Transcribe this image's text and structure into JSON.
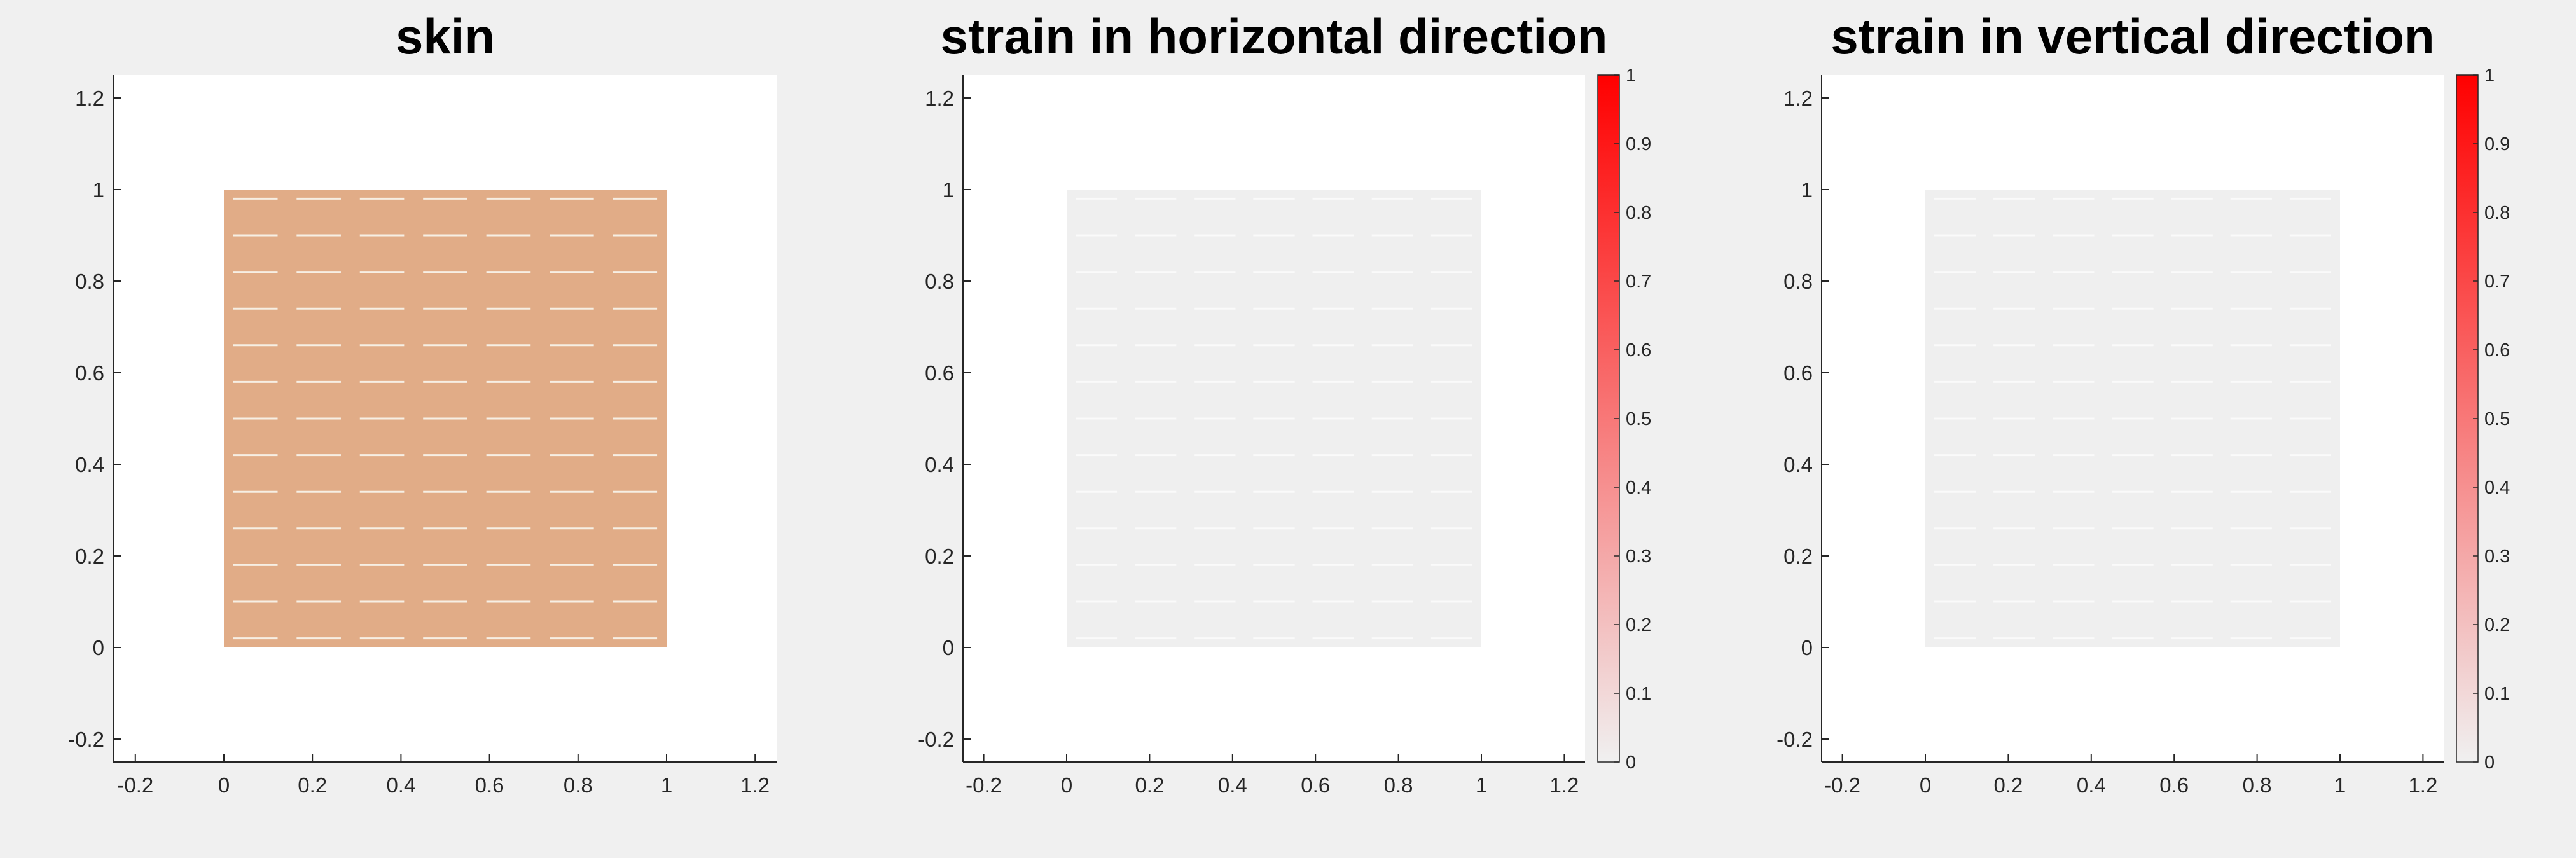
{
  "chart_data": [
    {
      "type": "heatmap",
      "title": "skin",
      "xlim": [
        -0.25,
        1.25
      ],
      "ylim": [
        -0.25,
        1.25
      ],
      "xticks": [
        -0.2,
        0,
        0.2,
        0.4,
        0.6,
        0.8,
        1,
        1.2
      ],
      "yticks": [
        -0.2,
        0,
        0.2,
        0.4,
        0.6,
        0.8,
        1,
        1.2
      ],
      "xtick_labels": [
        "-0.2",
        "0",
        "0.2",
        "0.4",
        "0.6",
        "0.8",
        "1",
        "1.2"
      ],
      "ytick_labels": [
        "-0.2",
        "0",
        "0.2",
        "0.4",
        "0.6",
        "0.8",
        "1",
        "1.2"
      ],
      "region": {
        "x": [
          0,
          1
        ],
        "y": [
          0,
          1
        ],
        "fill": "#e1ac87"
      },
      "slits": {
        "color": "#f6efe4",
        "columns": 7,
        "rows": 13,
        "row_y_start": 0.02,
        "row_y_step": 0.08,
        "length": 0.1
      },
      "colorbar": null
    },
    {
      "type": "heatmap",
      "title": "strain in horizontal direction",
      "xlim": [
        -0.25,
        1.25
      ],
      "ylim": [
        -0.25,
        1.25
      ],
      "xticks": [
        -0.2,
        0,
        0.2,
        0.4,
        0.6,
        0.8,
        1,
        1.2
      ],
      "yticks": [
        -0.2,
        0,
        0.2,
        0.4,
        0.6,
        0.8,
        1,
        1.2
      ],
      "xtick_labels": [
        "-0.2",
        "0",
        "0.2",
        "0.4",
        "0.6",
        "0.8",
        "1",
        "1.2"
      ],
      "ytick_labels": [
        "-0.2",
        "0",
        "0.2",
        "0.4",
        "0.6",
        "0.8",
        "1",
        "1.2"
      ],
      "region": {
        "x": [
          0,
          1
        ],
        "y": [
          0,
          1
        ],
        "fill": "#efefef",
        "value": 0
      },
      "slits": {
        "color": "#fafafa",
        "columns": 7,
        "rows": 13,
        "row_y_start": 0.02,
        "row_y_step": 0.08,
        "length": 0.1
      },
      "colorbar": {
        "range": [
          0,
          1
        ],
        "ticks": [
          0,
          0.1,
          0.2,
          0.3,
          0.4,
          0.5,
          0.6,
          0.7,
          0.8,
          0.9,
          1
        ],
        "tick_labels": [
          "0",
          "0.1",
          "0.2",
          "0.3",
          "0.4",
          "0.5",
          "0.6",
          "0.7",
          "0.8",
          "0.9",
          "1"
        ],
        "color_low": "#f0f0f0",
        "color_high": "#ff0000"
      }
    },
    {
      "type": "heatmap",
      "title": "strain in vertical direction",
      "xlim": [
        -0.25,
        1.25
      ],
      "ylim": [
        -0.25,
        1.25
      ],
      "xticks": [
        -0.2,
        0,
        0.2,
        0.4,
        0.6,
        0.8,
        1,
        1.2
      ],
      "yticks": [
        -0.2,
        0,
        0.2,
        0.4,
        0.6,
        0.8,
        1,
        1.2
      ],
      "xtick_labels": [
        "-0.2",
        "0",
        "0.2",
        "0.4",
        "0.6",
        "0.8",
        "1",
        "1.2"
      ],
      "ytick_labels": [
        "-0.2",
        "0",
        "0.2",
        "0.4",
        "0.6",
        "0.8",
        "1",
        "1.2"
      ],
      "region": {
        "x": [
          0,
          1
        ],
        "y": [
          0,
          1
        ],
        "fill": "#efefef",
        "value": 0
      },
      "slits": {
        "color": "#fafafa",
        "columns": 7,
        "rows": 13,
        "row_y_start": 0.02,
        "row_y_step": 0.08,
        "length": 0.1
      },
      "colorbar": {
        "range": [
          0,
          1
        ],
        "ticks": [
          0,
          0.1,
          0.2,
          0.3,
          0.4,
          0.5,
          0.6,
          0.7,
          0.8,
          0.9,
          1
        ],
        "tick_labels": [
          "0",
          "0.1",
          "0.2",
          "0.3",
          "0.4",
          "0.5",
          "0.6",
          "0.7",
          "0.8",
          "0.9",
          "1"
        ],
        "color_low": "#f0f0f0",
        "color_high": "#ff0000"
      }
    }
  ]
}
